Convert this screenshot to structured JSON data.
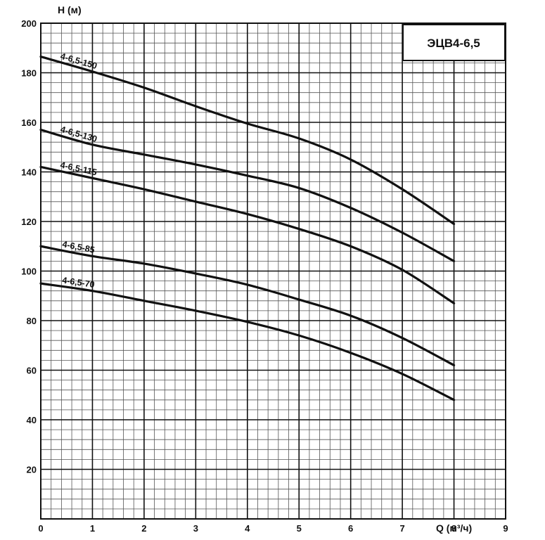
{
  "chart_data": {
    "type": "line",
    "title": "ЭЦВ4-6,5",
    "xlabel": "Q (м³/ч)",
    "ylabel": "H (м)",
    "xlim": [
      0,
      9
    ],
    "ylim": [
      0,
      200
    ],
    "x_ticks": [
      0,
      1,
      2,
      3,
      4,
      5,
      6,
      7,
      8,
      9
    ],
    "x_tick_labels": [
      "0",
      "1",
      "2",
      "3",
      "4",
      "5",
      "6",
      "7",
      "8",
      "9"
    ],
    "y_ticks": [
      20,
      40,
      60,
      80,
      100,
      120,
      140,
      160,
      180,
      200
    ],
    "y_tick_labels": [
      "20",
      "40",
      "60",
      "80",
      "100",
      "120",
      "140",
      "160",
      "180",
      "200"
    ],
    "grid": true,
    "line_color": "#111111",
    "grid_color": "#555555",
    "series": [
      {
        "name": "4-6,5-150",
        "points": [
          [
            0,
            186.5
          ],
          [
            1,
            180.5
          ],
          [
            2,
            174
          ],
          [
            3,
            166.5
          ],
          [
            4,
            159.5
          ],
          [
            5,
            153.5
          ],
          [
            6,
            145
          ],
          [
            7,
            133
          ],
          [
            8,
            119
          ]
        ]
      },
      {
        "name": "4-6,5-130",
        "points": [
          [
            0,
            157
          ],
          [
            1,
            151
          ],
          [
            2,
            147
          ],
          [
            3,
            143
          ],
          [
            4,
            138.5
          ],
          [
            5,
            133.5
          ],
          [
            6,
            125.5
          ],
          [
            7,
            115.5
          ],
          [
            8,
            104
          ]
        ]
      },
      {
        "name": "4-6,5-115",
        "points": [
          [
            0,
            142
          ],
          [
            1,
            137.5
          ],
          [
            2,
            133
          ],
          [
            3,
            128
          ],
          [
            4,
            123
          ],
          [
            5,
            117
          ],
          [
            6,
            110
          ],
          [
            7,
            100.5
          ],
          [
            8,
            87
          ]
        ]
      },
      {
        "name": "4-6,5-85",
        "points": [
          [
            0,
            110
          ],
          [
            1,
            106
          ],
          [
            2,
            103
          ],
          [
            3,
            99
          ],
          [
            4,
            94.5
          ],
          [
            5,
            88.5
          ],
          [
            6,
            82
          ],
          [
            7,
            73
          ],
          [
            8,
            62
          ]
        ]
      },
      {
        "name": "4-6,5-70",
        "points": [
          [
            0,
            95
          ],
          [
            1,
            92
          ],
          [
            2,
            88
          ],
          [
            3,
            84
          ],
          [
            4,
            79.5
          ],
          [
            5,
            74
          ],
          [
            6,
            67
          ],
          [
            7,
            58.5
          ],
          [
            8,
            48
          ]
        ]
      }
    ]
  }
}
